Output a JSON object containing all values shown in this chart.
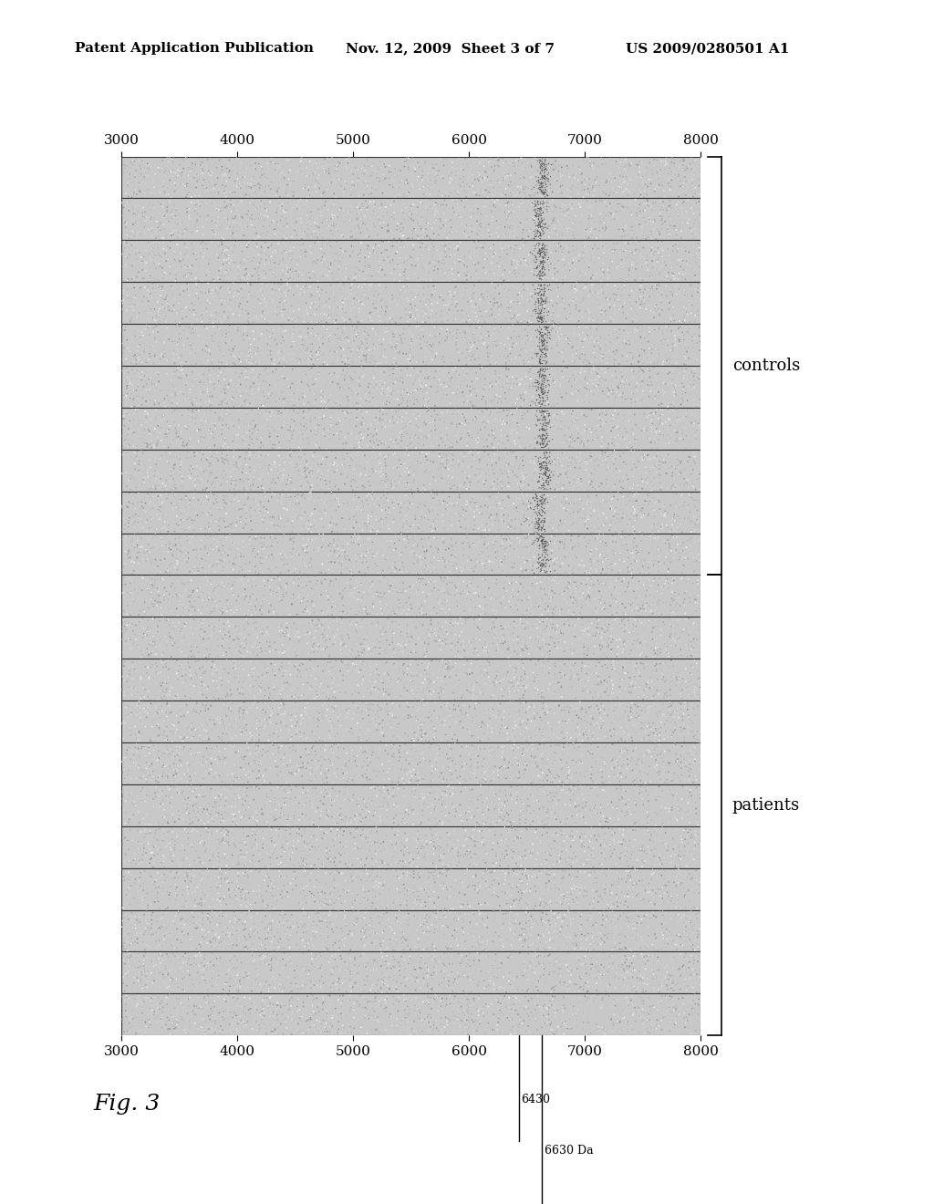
{
  "title_left": "Patent Application Publication",
  "title_mid": "Nov. 12, 2009  Sheet 3 of 7",
  "title_right": "US 2009/0280501 A1",
  "xmin": 3000,
  "xmax": 8000,
  "xticks": [
    3000,
    4000,
    5000,
    6000,
    7000,
    8000
  ],
  "n_controls": 10,
  "n_patients": 11,
  "marker1_x": 6430,
  "marker2_x": 6630,
  "marker1_label": "6430",
  "marker2_label": "6630 Da",
  "controls_label": "controls",
  "patients_label": "patients",
  "fig_label": "Fig. 3",
  "bg_color": "#ffffff",
  "header_fontsize": 11,
  "axis_fontsize": 11,
  "label_fontsize": 13,
  "fig_label_fontsize": 18
}
